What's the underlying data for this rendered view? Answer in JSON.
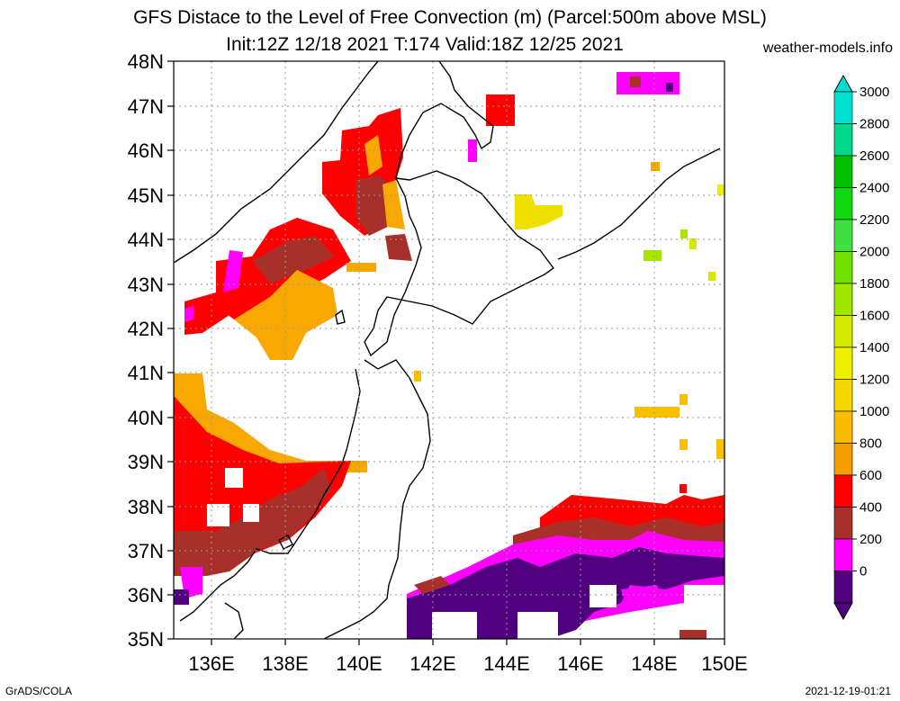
{
  "title_line1": "GFS Distace to the Level of Free Convection (m) (Parcel:500m above MSL)",
  "title_line2": "Init:12Z 12/18 2021 T:174 Valid:18Z 12/25 2021",
  "site": "weather-models.info",
  "footer_left": "GrADS/COLA",
  "footer_right": "2021-12-19-01:21",
  "map": {
    "lat_labels": [
      "48N",
      "47N",
      "46N",
      "45N",
      "44N",
      "43N",
      "42N",
      "41N",
      "40N",
      "39N",
      "38N",
      "37N",
      "36N",
      "35N"
    ],
    "lon_labels": [
      "136E",
      "138E",
      "140E",
      "142E",
      "144E",
      "146E",
      "148E",
      "150E"
    ]
  },
  "colorbar": {
    "labels": [
      "3000",
      "2800",
      "2600",
      "2400",
      "2200",
      "2000",
      "1800",
      "1600",
      "1400",
      "1200",
      "1000",
      "800",
      "600",
      "400",
      "200",
      "0"
    ],
    "colors": [
      "#00e0d0",
      "#00d88a",
      "#00c000",
      "#10d810",
      "#40e040",
      "#70e000",
      "#a0e600",
      "#d6ea00",
      "#f0f000",
      "#f6d800",
      "#f8bc00",
      "#f49e00",
      "#ff0000",
      "#a8302a",
      "#ff00ff",
      "#50007e"
    ]
  }
}
